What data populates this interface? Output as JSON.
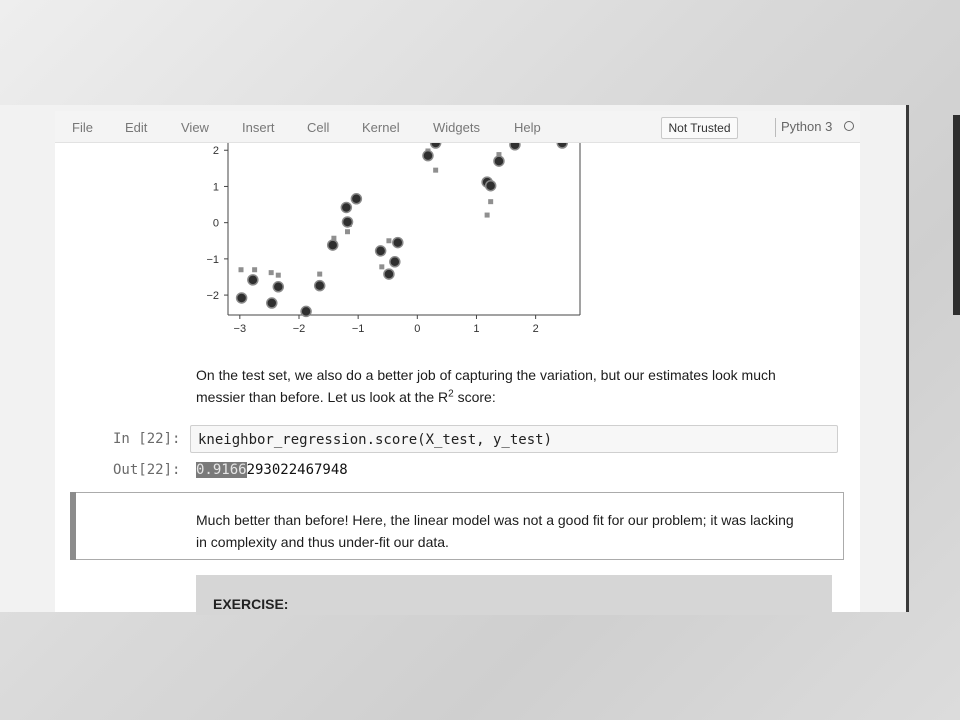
{
  "menubar": {
    "items": [
      "File",
      "Edit",
      "View",
      "Insert",
      "Cell",
      "Kernel",
      "Widgets",
      "Help"
    ],
    "trust_label": "Not Trusted",
    "kernel_name": "Python 3"
  },
  "chart_data": {
    "type": "scatter",
    "xlim": [
      -3.2,
      2.75
    ],
    "ylim": [
      -2.55,
      2.2
    ],
    "x_ticks": [
      -3,
      -2,
      -1,
      0,
      1,
      2
    ],
    "y_ticks": [
      2,
      1,
      0,
      -1,
      -2
    ],
    "x_tick_labels": [
      "−3",
      "−2",
      "−1",
      "0",
      "1",
      "2"
    ],
    "y_tick_labels": [
      "2",
      "1",
      "0",
      "−1",
      "−2"
    ],
    "series": [
      {
        "marker": "large-dark-circle",
        "points": [
          [
            -2.97,
            -2.08
          ],
          [
            -2.78,
            -1.58
          ],
          [
            -2.46,
            -2.22
          ],
          [
            -2.35,
            -1.77
          ],
          [
            -1.88,
            -2.45
          ],
          [
            -1.65,
            -1.74
          ],
          [
            -1.43,
            -0.62
          ],
          [
            -1.2,
            0.42
          ],
          [
            -1.18,
            0.02
          ],
          [
            -1.03,
            0.66
          ],
          [
            -0.62,
            -0.78
          ],
          [
            -0.48,
            -1.42
          ],
          [
            -0.38,
            -1.08
          ],
          [
            -0.33,
            -0.55
          ],
          [
            0.18,
            1.85
          ],
          [
            0.31,
            2.2
          ],
          [
            1.18,
            1.12
          ],
          [
            1.24,
            1.02
          ],
          [
            1.38,
            1.7
          ],
          [
            1.65,
            2.15
          ],
          [
            2.45,
            2.2
          ]
        ]
      },
      {
        "marker": "small-gray-square",
        "points": [
          [
            -2.98,
            -1.3
          ],
          [
            -2.75,
            -1.3
          ],
          [
            -2.47,
            -1.38
          ],
          [
            -2.35,
            -1.45
          ],
          [
            -1.65,
            -1.42
          ],
          [
            -1.41,
            -0.43
          ],
          [
            -1.18,
            -0.25
          ],
          [
            -1.15,
            -0.05
          ],
          [
            -0.6,
            -1.22
          ],
          [
            -0.48,
            -0.5
          ],
          [
            -0.33,
            -0.5
          ],
          [
            0.18,
            1.98
          ],
          [
            0.31,
            1.45
          ],
          [
            1.18,
            0.21
          ],
          [
            1.24,
            0.58
          ],
          [
            1.38,
            1.88
          ]
        ]
      }
    ]
  },
  "markdown1": {
    "line1": "On the test set, we also do a better job of capturing the variation, but our estimates look much",
    "line2_pre": "messier than before. Let us look at the R",
    "sup": "2",
    "line2_post": " score:"
  },
  "code_cell": {
    "prompt_in": "In [22]:",
    "code": "kneighbor_regression.score(X_test, y_test)",
    "prompt_out": "Out[22]:",
    "output_selected": "0.9166",
    "output_rest": "293022467948"
  },
  "markdown2": {
    "line1": "Much better than before! Here, the linear model was not a good fit for our problem; it was lacking",
    "line2": "in complexity and thus under-fit our data."
  },
  "exercise": {
    "label": "EXERCISE:"
  }
}
